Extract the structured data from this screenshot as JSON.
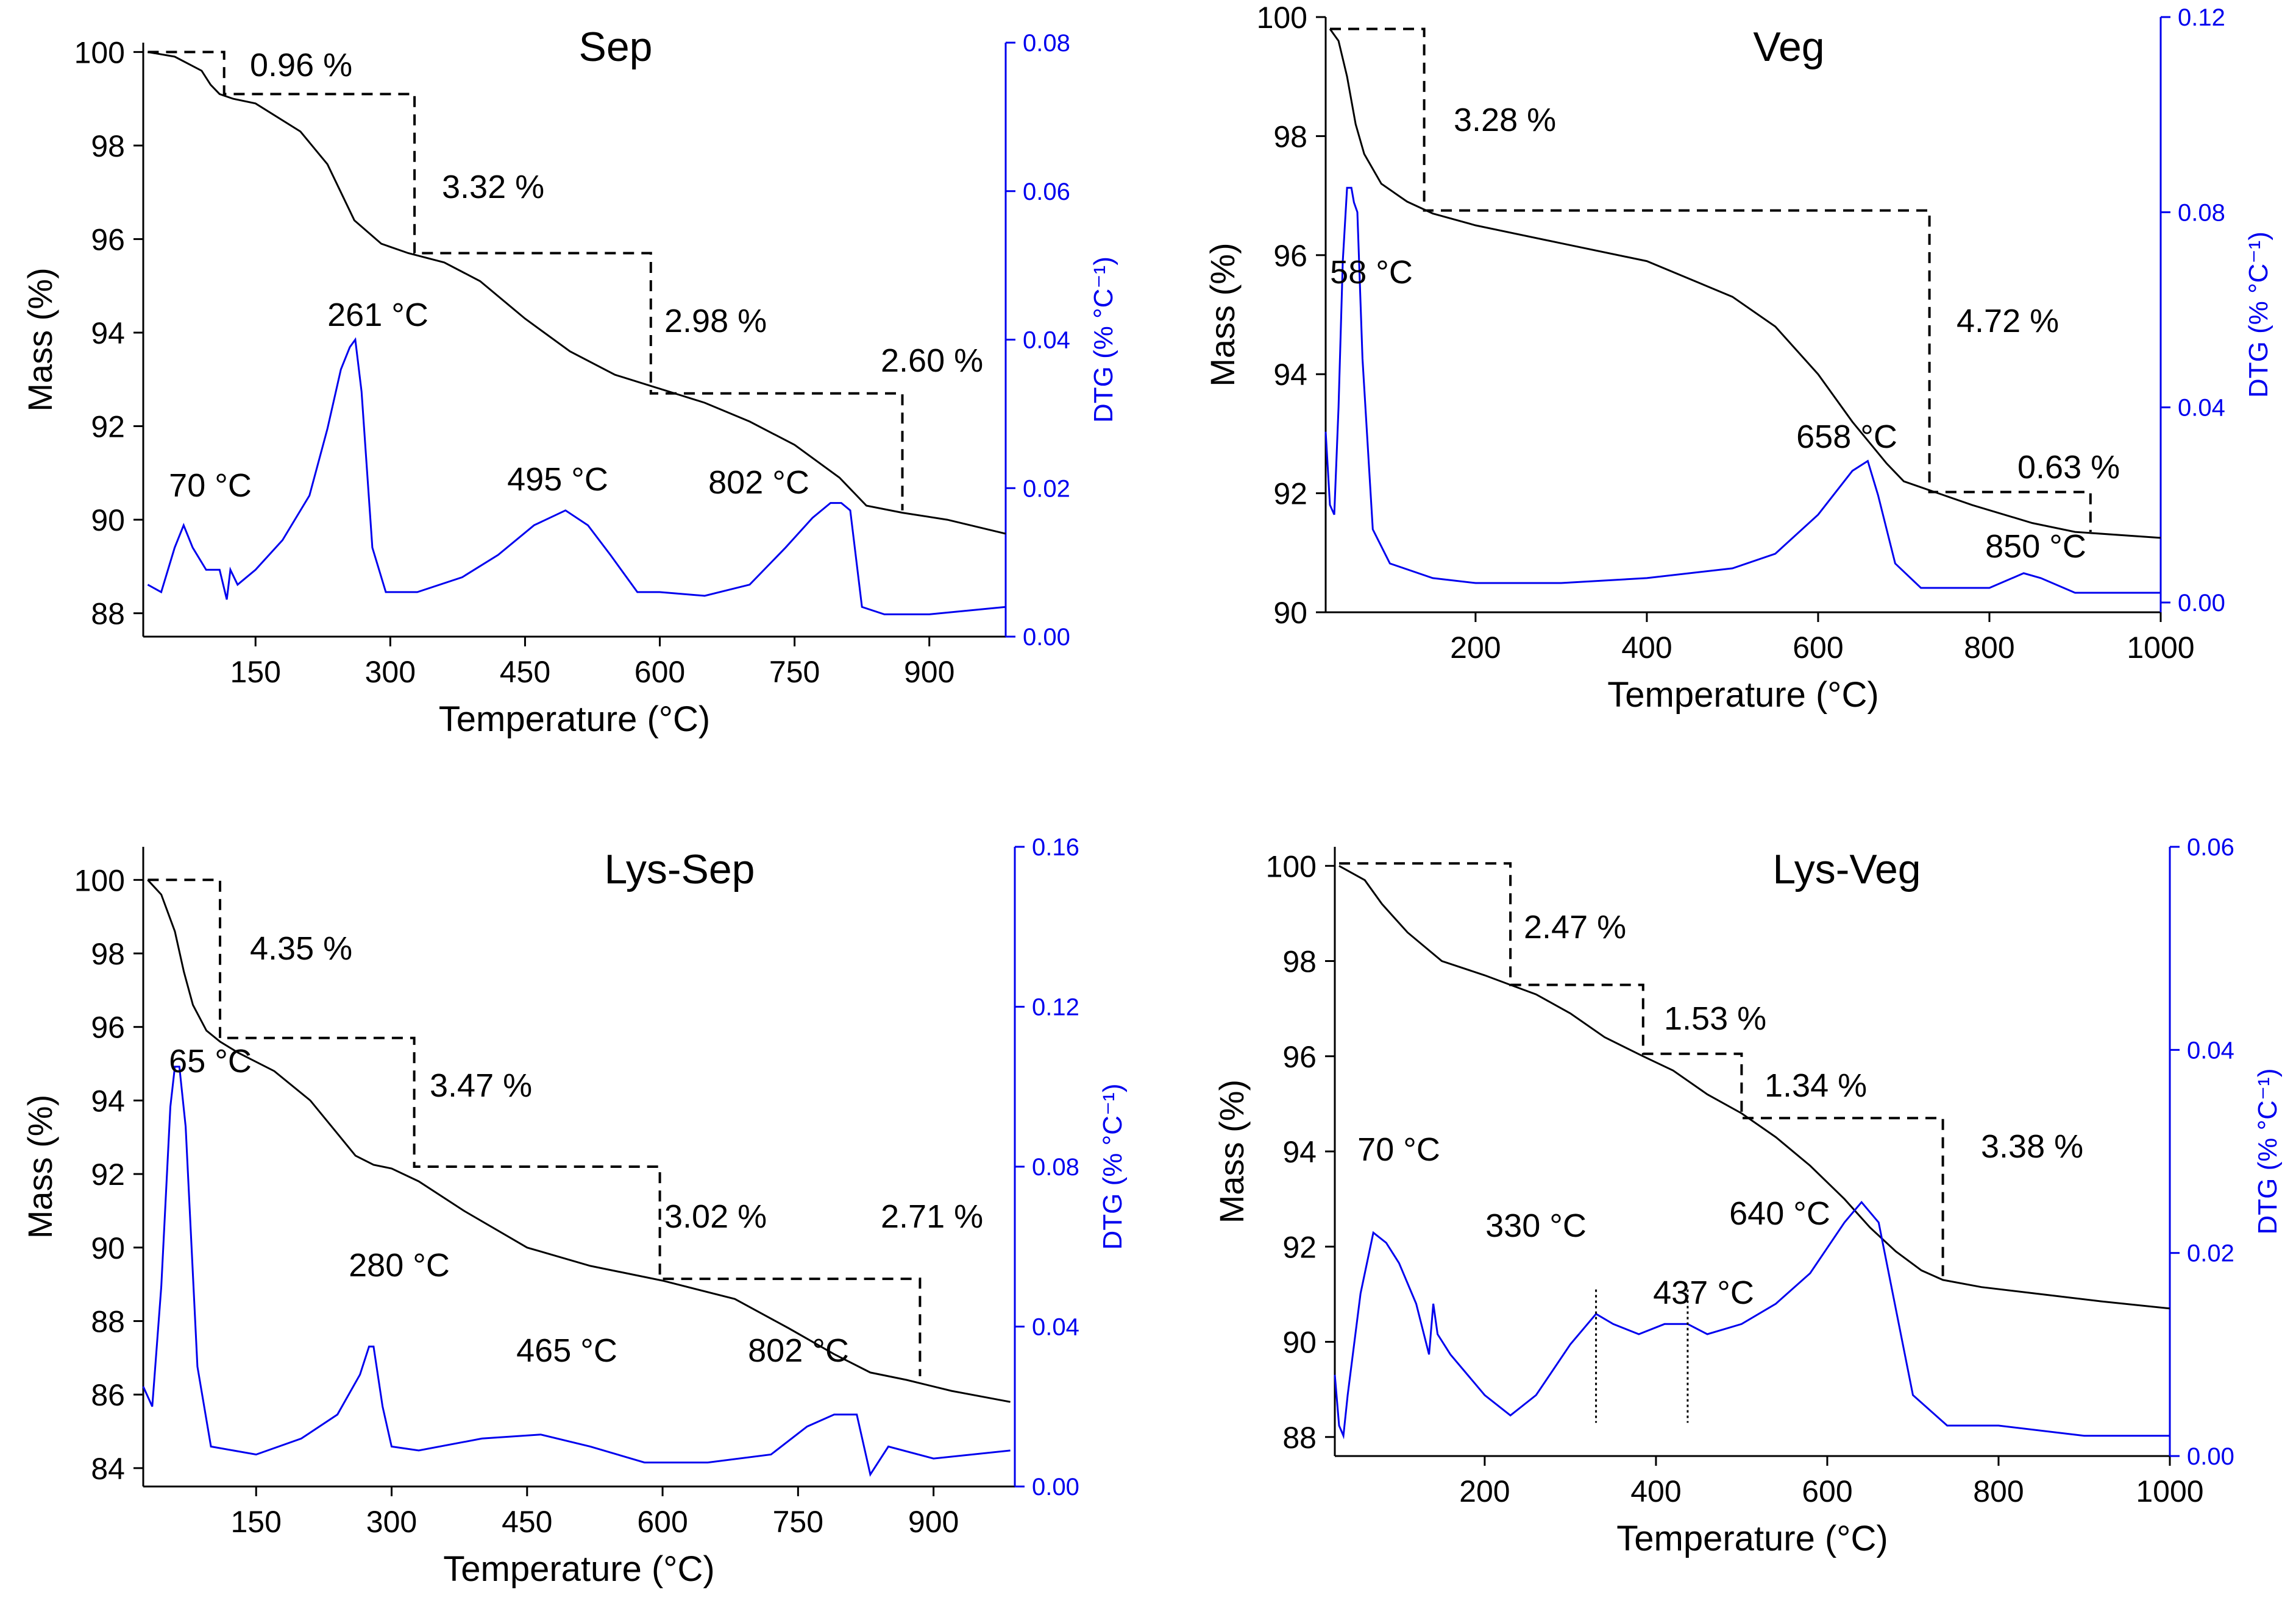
{
  "chart_data": [
    {
      "type": "line",
      "title": "Sep",
      "xlabel": "Temperature (°C)",
      "ylabel": "Mass (%)",
      "y2label": "DTG (% °C⁻¹)",
      "xlim": [
        25,
        985
      ],
      "ylim": [
        87.5,
        100.2
      ],
      "y2lim": [
        0.0,
        0.08
      ],
      "xticks": [
        150,
        300,
        450,
        600,
        750,
        900
      ],
      "yticks": [
        88,
        90,
        92,
        94,
        96,
        98,
        100
      ],
      "y2ticks": [
        0.0,
        0.02,
        0.04,
        0.06,
        0.08
      ],
      "y2tick_decimals": 2,
      "mass_curve": {
        "x": [
          30,
          60,
          90,
          100,
          110,
          125,
          150,
          200,
          230,
          260,
          290,
          320,
          360,
          400,
          450,
          500,
          550,
          600,
          650,
          700,
          750,
          800,
          830,
          870,
          920,
          985
        ],
        "y": [
          100,
          99.9,
          99.6,
          99.3,
          99.1,
          99.0,
          98.9,
          98.3,
          97.6,
          96.4,
          95.9,
          95.7,
          95.5,
          95.1,
          94.3,
          93.6,
          93.1,
          92.8,
          92.5,
          92.1,
          91.6,
          90.9,
          90.3,
          90.15,
          90.0,
          89.7
        ]
      },
      "dtg_curve": {
        "x": [
          30,
          45,
          60,
          70,
          80,
          95,
          110,
          118,
          122,
          130,
          150,
          180,
          210,
          230,
          245,
          255,
          261,
          268,
          280,
          295,
          330,
          380,
          420,
          460,
          495,
          520,
          545,
          575,
          600,
          650,
          700,
          740,
          770,
          790,
          802,
          812,
          825,
          850,
          900,
          985
        ],
        "y": [
          0.007,
          0.006,
          0.012,
          0.015,
          0.012,
          0.009,
          0.009,
          0.005,
          0.009,
          0.007,
          0.009,
          0.013,
          0.019,
          0.028,
          0.036,
          0.039,
          0.04,
          0.033,
          0.012,
          0.006,
          0.006,
          0.008,
          0.011,
          0.015,
          0.017,
          0.015,
          0.011,
          0.006,
          0.006,
          0.0055,
          0.007,
          0.012,
          0.016,
          0.018,
          0.018,
          0.017,
          0.004,
          0.003,
          0.003,
          0.004
        ]
      },
      "steps_mass": [
        100,
        99.1,
        95.7,
        92.7,
        90.2
      ],
      "steps_temp": [
        115,
        327,
        590,
        870
      ],
      "step_labels": [
        "0.96 %",
        "3.32 %",
        "2.98 %",
        "2.60 %"
      ],
      "peak_labels": [
        {
          "text": "70 °C",
          "x": 70,
          "dtg": 0.015
        },
        {
          "text": "261 °C",
          "x": 261,
          "dtg": 0.04
        },
        {
          "text": "495 °C",
          "x": 495,
          "dtg": 0.017
        },
        {
          "text": "802 °C",
          "x": 790,
          "dtg": 0.018
        }
      ]
    },
    {
      "type": "line",
      "title": "Veg",
      "xlabel": "Temperature (°C)",
      "ylabel": "Mass (%)",
      "y2label": "DTG (% °C⁻¹)",
      "xlim": [
        25,
        1000
      ],
      "ylim": [
        90,
        100
      ],
      "y2lim": [
        -0.002,
        0.12
      ],
      "xticks": [
        200,
        400,
        600,
        800,
        1000
      ],
      "yticks": [
        90,
        92,
        94,
        96,
        98,
        100
      ],
      "y2ticks": [
        0.0,
        0.04,
        0.08,
        0.12
      ],
      "y2tick_decimals": 2,
      "mass_curve": {
        "x": [
          30,
          40,
          50,
          60,
          70,
          90,
          120,
          150,
          200,
          300,
          400,
          500,
          550,
          600,
          640,
          680,
          700,
          730,
          780,
          850,
          900,
          1000
        ],
        "y": [
          99.8,
          99.6,
          99.0,
          98.2,
          97.7,
          97.2,
          96.9,
          96.7,
          96.5,
          96.2,
          95.9,
          95.3,
          94.8,
          94.0,
          93.2,
          92.5,
          92.2,
          92.05,
          91.8,
          91.5,
          91.35,
          91.25
        ]
      },
      "dtg_curve": {
        "x": [
          25,
          30,
          35,
          40,
          45,
          50,
          55,
          58,
          62,
          68,
          80,
          100,
          150,
          200,
          300,
          400,
          500,
          550,
          600,
          640,
          658,
          670,
          690,
          720,
          800,
          840,
          860,
          900,
          1000
        ],
        "y": [
          0.035,
          0.02,
          0.018,
          0.04,
          0.07,
          0.085,
          0.085,
          0.082,
          0.08,
          0.05,
          0.015,
          0.008,
          0.005,
          0.004,
          0.004,
          0.005,
          0.007,
          0.01,
          0.018,
          0.027,
          0.029,
          0.022,
          0.008,
          0.003,
          0.003,
          0.006,
          0.005,
          0.002,
          0.002
        ]
      },
      "steps_mass": [
        99.8,
        96.75,
        92.02,
        91.35
      ],
      "steps_temp": [
        140,
        730,
        918
      ],
      "step_labels": [
        "3.28 %",
        "4.72 %",
        "0.63 %"
      ],
      "peak_labels": [
        {
          "text": "58 °C",
          "x": 58,
          "dtg": 0.085
        },
        {
          "text": "658 °C",
          "x": 658,
          "dtg": 0.029
        },
        {
          "text": "850 °C",
          "x": 850,
          "dtg": 0.006
        }
      ]
    },
    {
      "type": "line",
      "title": "Lys-Sep",
      "xlabel": "Temperature (°C)",
      "ylabel": "Mass (%)",
      "y2label": "DTG (% °C⁻¹)",
      "xlim": [
        25,
        990
      ],
      "ylim": [
        83.5,
        100.9
      ],
      "y2lim": [
        0.0,
        0.16
      ],
      "xticks": [
        150,
        300,
        450,
        600,
        750,
        900
      ],
      "yticks": [
        84,
        86,
        88,
        90,
        92,
        94,
        96,
        98,
        100
      ],
      "y2ticks": [
        0.0,
        0.04,
        0.08,
        0.12,
        0.16
      ],
      "y2tick_decimals": 2,
      "mass_curve": {
        "x": [
          30,
          45,
          60,
          70,
          80,
          95,
          110,
          130,
          170,
          210,
          240,
          260,
          280,
          300,
          330,
          380,
          450,
          520,
          600,
          680,
          740,
          790,
          830,
          870,
          920,
          985
        ],
        "y": [
          100,
          99.6,
          98.6,
          97.5,
          96.6,
          95.9,
          95.6,
          95.3,
          94.8,
          94.0,
          93.1,
          92.5,
          92.25,
          92.15,
          91.8,
          91.0,
          90.0,
          89.5,
          89.1,
          88.6,
          87.8,
          87.1,
          86.6,
          86.4,
          86.1,
          85.8
        ]
      },
      "dtg_curve": {
        "x": [
          25,
          35,
          45,
          55,
          60,
          65,
          72,
          85,
          100,
          150,
          200,
          240,
          265,
          275,
          280,
          290,
          300,
          330,
          400,
          465,
          520,
          580,
          650,
          720,
          760,
          790,
          802,
          815,
          830,
          850,
          900,
          985
        ],
        "y": [
          0.025,
          0.02,
          0.05,
          0.095,
          0.105,
          0.105,
          0.09,
          0.03,
          0.01,
          0.008,
          0.012,
          0.018,
          0.028,
          0.035,
          0.035,
          0.02,
          0.01,
          0.009,
          0.012,
          0.013,
          0.01,
          0.006,
          0.006,
          0.008,
          0.015,
          0.018,
          0.018,
          0.018,
          0.003,
          0.01,
          0.007,
          0.009
        ]
      },
      "steps_mass": [
        100,
        95.7,
        92.2,
        89.15,
        86.5
      ],
      "steps_temp": [
        110,
        325,
        597,
        885
      ],
      "step_labels": [
        "4.35 %",
        "3.47 %",
        "3.02 %",
        "2.71 %"
      ],
      "peak_labels": [
        {
          "text": "65 °C",
          "x": 65,
          "dtg": 0.105
        },
        {
          "text": "280 °C",
          "x": 280,
          "dtg": 0.035
        },
        {
          "text": "465 °C",
          "x": 465,
          "dtg": 0.013
        },
        {
          "text": "802 °C",
          "x": 795,
          "dtg": 0.018
        }
      ]
    },
    {
      "type": "line",
      "title": "Lys-Veg",
      "xlabel": "Temperature (°C)",
      "ylabel": "Mass (%)",
      "y2label": "DTG (% °C⁻¹)",
      "xlim": [
        25,
        1000
      ],
      "ylim": [
        87.6,
        100.4
      ],
      "y2lim": [
        0.0,
        0.06
      ],
      "xticks": [
        200,
        400,
        600,
        800,
        1000
      ],
      "yticks": [
        88,
        90,
        92,
        94,
        96,
        98,
        100
      ],
      "y2ticks": [
        0.0,
        0.02,
        0.04,
        0.06
      ],
      "y2tick_decimals": 2,
      "mass_curve": {
        "x": [
          30,
          60,
          80,
          110,
          150,
          200,
          230,
          260,
          300,
          340,
          385,
          420,
          460,
          500,
          540,
          580,
          620,
          650,
          680,
          710,
          735,
          780,
          850,
          920,
          1000
        ],
        "y": [
          100,
          99.7,
          99.2,
          98.6,
          98.0,
          97.7,
          97.5,
          97.3,
          96.9,
          96.4,
          96.0,
          95.7,
          95.2,
          94.8,
          94.3,
          93.7,
          93.0,
          92.4,
          91.9,
          91.5,
          91.3,
          91.15,
          91.0,
          90.85,
          90.7
        ]
      },
      "dtg_curve": {
        "x": [
          25,
          30,
          35,
          40,
          55,
          70,
          85,
          100,
          120,
          135,
          140,
          145,
          160,
          200,
          230,
          260,
          300,
          330,
          350,
          380,
          410,
          437,
          460,
          500,
          540,
          580,
          620,
          640,
          660,
          700,
          740,
          800,
          900,
          1000
        ],
        "y": [
          0.008,
          0.003,
          0.002,
          0.006,
          0.016,
          0.022,
          0.021,
          0.019,
          0.015,
          0.01,
          0.015,
          0.012,
          0.01,
          0.006,
          0.004,
          0.006,
          0.011,
          0.014,
          0.013,
          0.012,
          0.013,
          0.013,
          0.012,
          0.013,
          0.015,
          0.018,
          0.023,
          0.025,
          0.023,
          0.006,
          0.003,
          0.003,
          0.002,
          0.002
        ]
      },
      "steps_mass": [
        100.05,
        97.5,
        96.05,
        94.7,
        91.3
      ],
      "steps_temp": [
        230,
        385,
        500,
        735
      ],
      "step_labels": [
        "2.47 %",
        "1.53 %",
        "1.34 %",
        "3.38 %"
      ],
      "peak_labels": [
        {
          "text": "70 °C",
          "x": 70,
          "dtg": 0.022
        },
        {
          "text": "330 °C",
          "x": 330,
          "dtg": 0.014
        },
        {
          "text": "437 °C",
          "x": 437,
          "dtg": 0.013
        },
        {
          "text": "640 °C",
          "x": 640,
          "dtg": 0.025
        }
      ],
      "marker_lines": [
        330,
        437
      ]
    }
  ],
  "colors": {
    "mass": "#000000",
    "dtg": "#0000ee"
  }
}
